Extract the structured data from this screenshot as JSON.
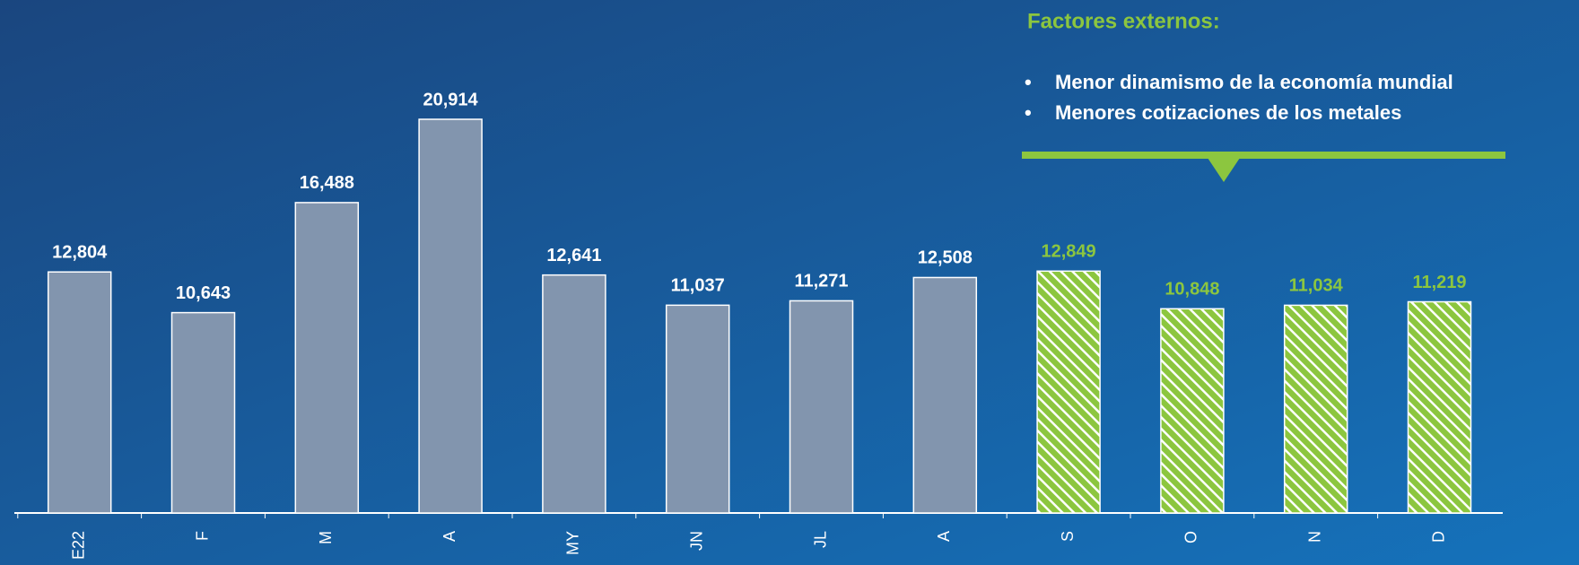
{
  "chart_data": {
    "type": "bar",
    "categories": [
      "E22",
      "F",
      "M",
      "A",
      "MY",
      "JN",
      "JL",
      "A",
      "S",
      "O",
      "N",
      "D"
    ],
    "values": [
      12804,
      10643,
      16488,
      20914,
      12641,
      11037,
      11271,
      12508,
      12849,
      10848,
      11034,
      11219
    ],
    "value_labels": [
      "12,804",
      "10,643",
      "16,488",
      "20,914",
      "12,641",
      "11,037",
      "11,271",
      "12,508",
      "12,849",
      "10,848",
      "11,034",
      "11,219"
    ],
    "bar_colors": [
      "#8295ae",
      "#8295ae",
      "#8295ae",
      "#8295ae",
      "#8295ae",
      "#8295ae",
      "#8295ae",
      "#8295ae",
      "#8cc63f",
      "#8cc63f",
      "#8cc63f",
      "#8cc63f"
    ],
    "hatched": [
      false,
      false,
      false,
      false,
      false,
      false,
      false,
      false,
      true,
      true,
      true,
      true
    ],
    "label_colors": [
      "#ffffff",
      "#ffffff",
      "#ffffff",
      "#ffffff",
      "#ffffff",
      "#ffffff",
      "#ffffff",
      "#ffffff",
      "#8cc63f",
      "#8cc63f",
      "#8cc63f",
      "#8cc63f"
    ],
    "annotation": {
      "title": "Factores externos:",
      "bullets": [
        "Menor dinamismo de la economía mundial",
        "Menores cotizaciones de los metales"
      ]
    }
  }
}
